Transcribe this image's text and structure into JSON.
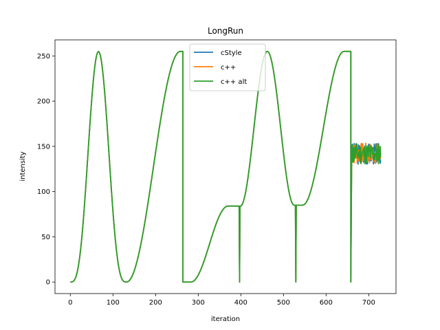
{
  "chart_data": {
    "type": "line",
    "title": "LongRun",
    "xlabel": "iteration",
    "ylabel": "intensity",
    "xlim": [
      -36,
      764
    ],
    "ylim": [
      -12.75,
      267.75
    ],
    "x_ticks": [
      0,
      100,
      200,
      300,
      400,
      500,
      600,
      700
    ],
    "y_ticks": [
      0,
      50,
      100,
      150,
      200,
      250
    ],
    "legend_position": "top-center",
    "grid": false,
    "segments": [
      {
        "kind": "bell",
        "x0": 0,
        "x1": 132,
        "base": 0,
        "peak": 255
      },
      {
        "kind": "rise",
        "x0": 132,
        "x1": 258,
        "from": 0,
        "to": 255
      },
      {
        "kind": "flat",
        "x0": 258,
        "x1": 264,
        "value": 255
      },
      {
        "kind": "drop",
        "x": 264,
        "to": 0
      },
      {
        "kind": "flat",
        "x0": 264,
        "x1": 283,
        "value": 0
      },
      {
        "kind": "rise",
        "x0": 283,
        "x1": 370,
        "from": 0,
        "to": 84
      },
      {
        "kind": "flat",
        "x0": 370,
        "x1": 395,
        "value": 84
      },
      {
        "kind": "spike",
        "x": 397,
        "to": 0,
        "back": 84
      },
      {
        "kind": "rise",
        "x0": 399,
        "x1": 462,
        "from": 84,
        "to": 255
      },
      {
        "kind": "fall",
        "x0": 462,
        "x1": 525,
        "from": 255,
        "to": 85
      },
      {
        "kind": "spike",
        "x": 529,
        "to": 0,
        "back": 85
      },
      {
        "kind": "flat",
        "x0": 531,
        "x1": 545,
        "value": 85
      },
      {
        "kind": "rise",
        "x0": 545,
        "x1": 642,
        "from": 85,
        "to": 255
      },
      {
        "kind": "flat",
        "x0": 642,
        "x1": 656,
        "value": 255
      },
      {
        "kind": "drop",
        "x": 658,
        "to": 0
      },
      {
        "kind": "noise",
        "x0": 660,
        "x1": 728,
        "center": 142,
        "amp": 12
      }
    ],
    "series": [
      {
        "name": "cStyle",
        "color": "#1f77b4",
        "noise_seed": 3
      },
      {
        "name": "c++",
        "color": "#ff7f0e",
        "noise_seed": 7
      },
      {
        "name": "c++ alt",
        "color": "#2ca02c",
        "noise_seed": 11
      }
    ]
  }
}
